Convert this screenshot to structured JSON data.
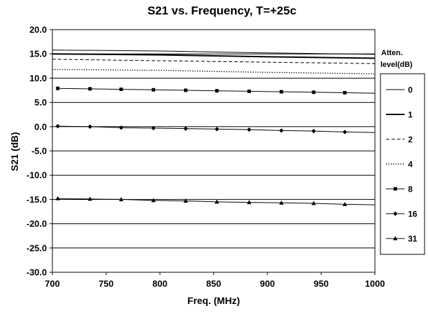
{
  "chart_data": {
    "type": "line",
    "title": "S21 vs. Frequency, T=+25c",
    "xlabel": "Freq. (MHz)",
    "ylabel": "S21 (dB)",
    "xlim": [
      700,
      1000
    ],
    "ylim": [
      -30,
      20
    ],
    "x_ticks": [
      "700",
      "750",
      "800",
      "850",
      "900",
      "950",
      "1000"
    ],
    "y_ticks": [
      "20.0",
      "15.0",
      "10.0",
      "5.0",
      "0.0",
      "-5.0",
      "-10.0",
      "-15.0",
      "-20.0",
      "-25.0",
      "-30.0"
    ],
    "grid": "horizontal",
    "legend_title": "Atten. level(dB)",
    "legend_position": "right",
    "series": [
      {
        "name": "0",
        "style": "solid-thin",
        "points": [
          [
            700,
            15.8
          ],
          [
            800,
            15.6
          ],
          [
            900,
            15.2
          ],
          [
            1000,
            14.9
          ]
        ]
      },
      {
        "name": "1",
        "style": "solid-thick",
        "points": [
          [
            700,
            15.0
          ],
          [
            800,
            14.8
          ],
          [
            900,
            14.4
          ],
          [
            1000,
            14.1
          ]
        ]
      },
      {
        "name": "2",
        "style": "dashed",
        "points": [
          [
            700,
            13.9
          ],
          [
            800,
            13.6
          ],
          [
            900,
            13.3
          ],
          [
            1000,
            13.0
          ]
        ]
      },
      {
        "name": "4",
        "style": "dotted",
        "points": [
          [
            700,
            11.8
          ],
          [
            800,
            11.6
          ],
          [
            900,
            11.2
          ],
          [
            1000,
            10.9
          ]
        ]
      },
      {
        "name": "8",
        "style": "square-markers",
        "points": [
          [
            705,
            7.9
          ],
          [
            735,
            7.8
          ],
          [
            764,
            7.7
          ],
          [
            794,
            7.6
          ],
          [
            824,
            7.5
          ],
          [
            853,
            7.4
          ],
          [
            883,
            7.3
          ],
          [
            913,
            7.2
          ],
          [
            943,
            7.1
          ],
          [
            972,
            7.0
          ],
          [
            1000,
            6.9
          ]
        ]
      },
      {
        "name": "16",
        "style": "diamond-markers",
        "points": [
          [
            705,
            0.1
          ],
          [
            735,
            0.0
          ],
          [
            764,
            -0.2
          ],
          [
            794,
            -0.3
          ],
          [
            824,
            -0.4
          ],
          [
            853,
            -0.5
          ],
          [
            883,
            -0.6
          ],
          [
            913,
            -0.8
          ],
          [
            943,
            -0.9
          ],
          [
            972,
            -1.1
          ],
          [
            1000,
            -1.2
          ]
        ]
      },
      {
        "name": "31",
        "style": "triangle-markers",
        "points": [
          [
            705,
            -14.8
          ],
          [
            735,
            -14.9
          ],
          [
            764,
            -15.0
          ],
          [
            794,
            -15.2
          ],
          [
            824,
            -15.3
          ],
          [
            853,
            -15.5
          ],
          [
            883,
            -15.6
          ],
          [
            913,
            -15.7
          ],
          [
            943,
            -15.8
          ],
          [
            972,
            -16.0
          ],
          [
            1000,
            -16.1
          ]
        ]
      }
    ]
  }
}
